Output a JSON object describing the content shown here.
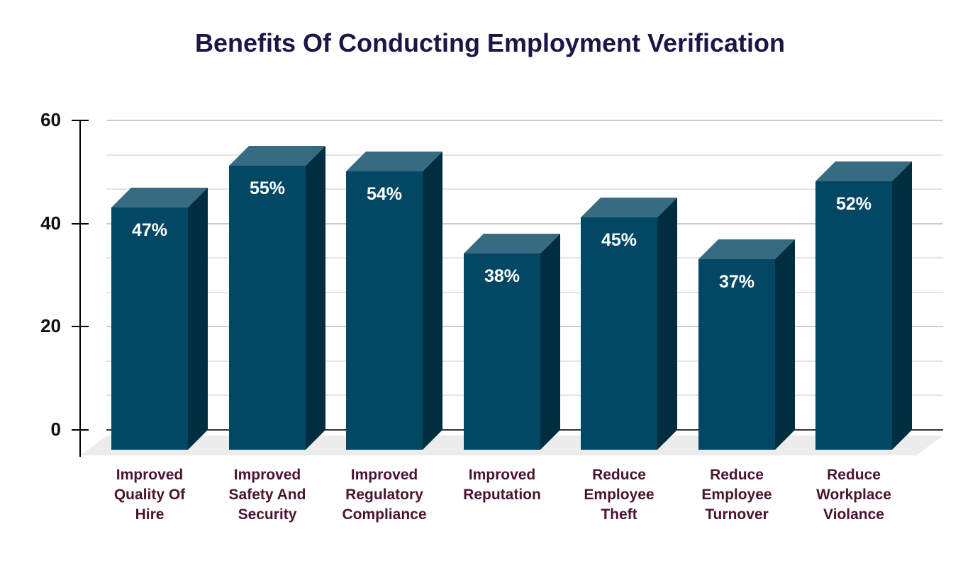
{
  "chart_data": {
    "type": "bar",
    "title": "Benefits Of Conducting Employment Verification",
    "xlabel": "",
    "ylabel": "",
    "ylim": [
      0,
      60
    ],
    "yticks": [
      0,
      20,
      40,
      60
    ],
    "grid": true,
    "style": "3d-column",
    "categories": [
      "Improved Quality Of Hire",
      "Improved Safety And Security",
      "Improved Regulatory Compliance",
      "Improved Reputation",
      "Reduce Employee Theft",
      "Reduce Employee Turnover",
      "Reduce Workplace Violance"
    ],
    "category_lines": [
      [
        "Improved",
        "Quality Of",
        "Hire"
      ],
      [
        "Improved",
        "Safety And",
        "Security"
      ],
      [
        "Improved",
        "Regulatory",
        "Compliance"
      ],
      [
        "Improved",
        "Reputation"
      ],
      [
        "Reduce",
        "Employee",
        "Theft"
      ],
      [
        "Reduce",
        "Employee",
        "Turnover"
      ],
      [
        "Reduce",
        "Workplace",
        "Violance"
      ]
    ],
    "values": [
      47,
      55,
      54,
      38,
      45,
      37,
      52
    ],
    "data_labels": [
      "47%",
      "55%",
      "54%",
      "38%",
      "45%",
      "37%",
      "52%"
    ],
    "colors": {
      "front": "#024764",
      "top": "#366b82",
      "side": "#012d40",
      "title": "#1e1448",
      "category_text": "#4a1430"
    }
  }
}
